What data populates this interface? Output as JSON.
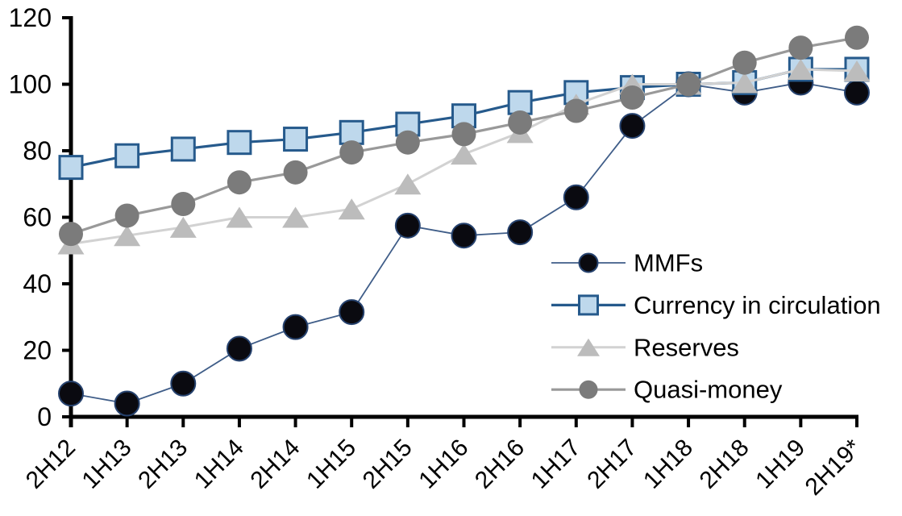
{
  "chart_data": {
    "type": "line",
    "title": "",
    "xlabel": "",
    "ylabel": "",
    "ylim": [
      0,
      120
    ],
    "yticks": [
      0,
      20,
      40,
      60,
      80,
      100,
      120
    ],
    "grid": false,
    "legend_position": "inside-center-right",
    "axis_color": "#000000",
    "categories": [
      "2H12",
      "1H13",
      "2H13",
      "1H14",
      "2H14",
      "1H15",
      "2H15",
      "1H16",
      "2H16",
      "1H17",
      "2H17",
      "1H18",
      "2H18",
      "1H19",
      "2H19*"
    ],
    "series": [
      {
        "name": "MMFs",
        "marker": "circle",
        "marker_fill": "#0a0a10",
        "marker_stroke": "#26426e",
        "line_color": "#3f5d88",
        "line_width": 1.8,
        "values": [
          7,
          4,
          10,
          20.5,
          27,
          31.5,
          57.5,
          54.5,
          55.5,
          66,
          87.5,
          100,
          97.5,
          100.5,
          97.5
        ]
      },
      {
        "name": "Currency in circulation",
        "marker": "square",
        "marker_fill": "#bed8ec",
        "marker_stroke": "#265a8c",
        "line_color": "#265a8c",
        "line_width": 3.2,
        "values": [
          75,
          78.5,
          80.5,
          82.5,
          83.5,
          85.5,
          88,
          90.5,
          94.5,
          97.5,
          99,
          100,
          100.5,
          104.5,
          104.5
        ]
      },
      {
        "name": "Reserves",
        "marker": "triangle",
        "marker_fill": "#bcbcbc",
        "marker_stroke": "none",
        "line_color": "#d2d2d2",
        "line_width": 3,
        "values": [
          52,
          54.5,
          57,
          60,
          60,
          62.5,
          70,
          79,
          85.5,
          94,
          100,
          100,
          100.5,
          104.5,
          104
        ]
      },
      {
        "name": "Quasi-money",
        "marker": "circle",
        "marker_fill": "#7b7b7b",
        "marker_stroke": "none",
        "line_color": "#999999",
        "line_width": 3.2,
        "values": [
          55,
          60.5,
          64,
          70.5,
          73.5,
          79.5,
          82.5,
          85,
          88.5,
          92,
          96,
          100,
          106.5,
          111,
          114
        ]
      }
    ]
  }
}
